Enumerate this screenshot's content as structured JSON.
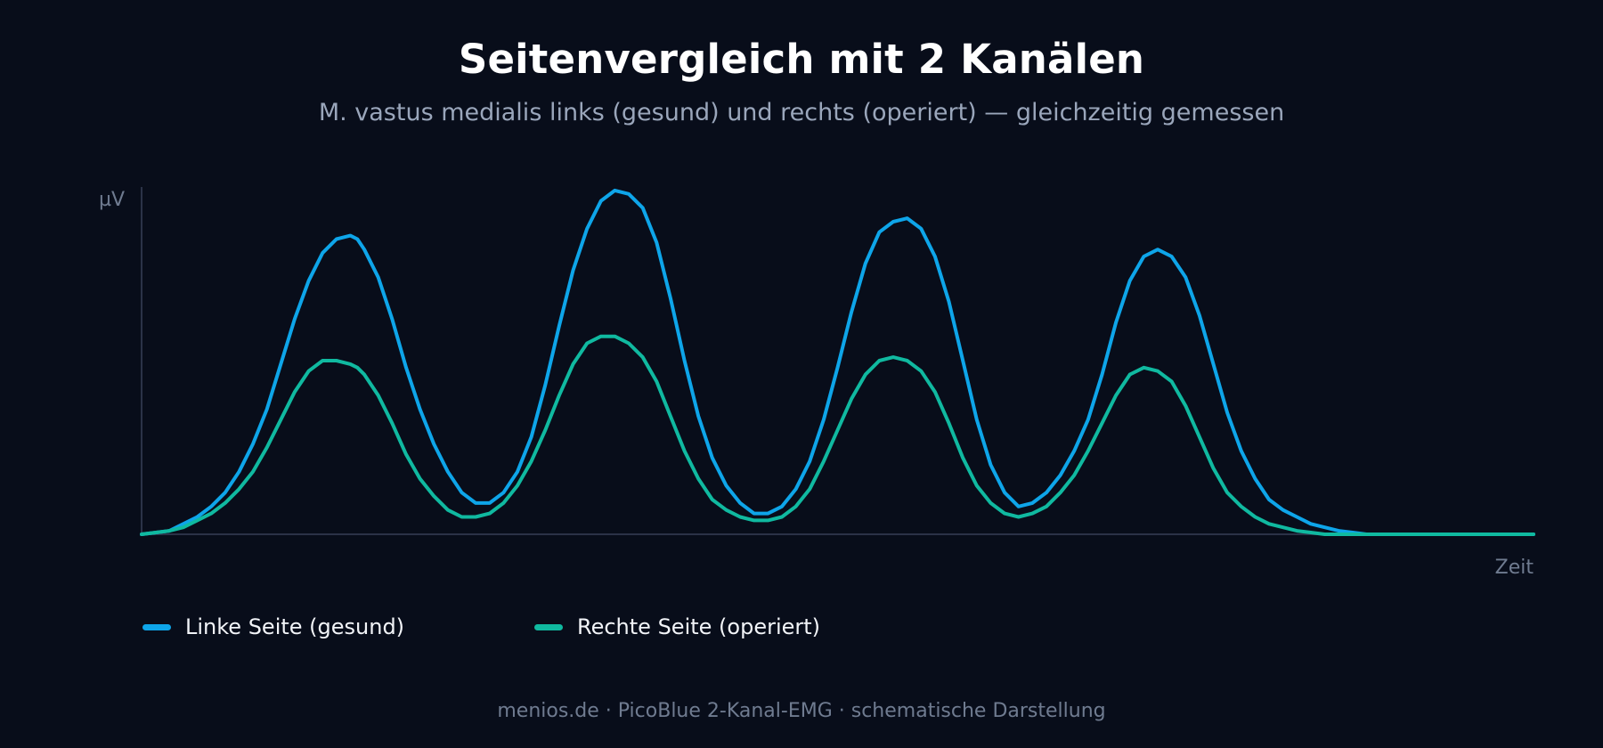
{
  "header": {
    "title": "Seitenvergleich mit 2 Kanälen",
    "subtitle": "M. vastus medialis links (gesund) und rechts (operiert) — gleichzeitig gemessen"
  },
  "footer": {
    "text": "menios.de · PicoBlue 2-Kanal-EMG · schematische Darstellung"
  },
  "colors": {
    "background": "#080d1a",
    "axis": "#2b3247",
    "left": "#0ea5e9",
    "right": "#10b9a0"
  },
  "chart_data": {
    "type": "line",
    "title": "Seitenvergleich mit 2 Kanälen",
    "subtitle": "M. vastus medialis links (gesund) und rechts (operiert) — gleichzeitig gemessen",
    "xlabel": "Zeit",
    "ylabel": "µV",
    "xlim": [
      0,
      100
    ],
    "ylim": [
      0,
      100
    ],
    "grid": false,
    "legend_position": "bottom-left",
    "series": [
      {
        "name": "Linke Seite (gesund)",
        "color": "#0ea5e9",
        "x": [
          0,
          2,
          3,
          4,
          5,
          6,
          7,
          8,
          9,
          10,
          11,
          12,
          13,
          14,
          15,
          15.5,
          16,
          17,
          18,
          19,
          20,
          21,
          22,
          23,
          24,
          25,
          26,
          27,
          28,
          29,
          30,
          31,
          32,
          33,
          34,
          35,
          36,
          37,
          38,
          39,
          40,
          41,
          42,
          43,
          44,
          45,
          46,
          47,
          48,
          49,
          50,
          51,
          52,
          53,
          54,
          55,
          56,
          57,
          58,
          59,
          60,
          61,
          62,
          63,
          64,
          65,
          66,
          67,
          68,
          69,
          70,
          71,
          72,
          73,
          74,
          75,
          76,
          77,
          78,
          79,
          80,
          81,
          82,
          83,
          84,
          85,
          86,
          87,
          88,
          89,
          90,
          91,
          92,
          93,
          94,
          95,
          96,
          97,
          98,
          99,
          100
        ],
        "values": [
          0,
          1,
          3,
          5,
          8,
          12,
          18,
          26,
          36,
          49,
          62,
          73,
          81,
          85,
          86,
          85,
          82,
          74,
          62,
          48,
          36,
          26,
          18,
          12,
          9,
          9,
          12,
          18,
          28,
          43,
          60,
          76,
          88,
          96,
          99,
          98,
          94,
          84,
          68,
          50,
          34,
          22,
          14,
          9,
          6,
          6,
          8,
          13,
          21,
          33,
          48,
          64,
          78,
          87,
          90,
          91,
          88,
          80,
          67,
          50,
          33,
          20,
          12,
          8,
          9,
          12,
          17,
          24,
          33,
          46,
          61,
          73,
          80,
          82,
          80,
          74,
          63,
          49,
          35,
          24,
          16,
          10,
          7,
          5,
          3,
          2,
          1,
          0.5,
          0,
          0,
          0,
          0,
          0,
          0,
          0,
          0,
          0,
          0,
          0,
          0,
          0
        ]
      },
      {
        "name": "Rechte Seite (operiert)",
        "color": "#10b9a0",
        "x": [
          0,
          2,
          3,
          4,
          5,
          6,
          7,
          8,
          9,
          10,
          11,
          12,
          13,
          14,
          15,
          15.5,
          16,
          17,
          18,
          19,
          20,
          21,
          22,
          23,
          24,
          25,
          26,
          27,
          28,
          29,
          30,
          31,
          32,
          33,
          34,
          35,
          36,
          37,
          38,
          39,
          40,
          41,
          42,
          43,
          44,
          45,
          46,
          47,
          48,
          49,
          50,
          51,
          52,
          53,
          54,
          55,
          56,
          57,
          58,
          59,
          60,
          61,
          62,
          63,
          64,
          65,
          66,
          67,
          68,
          69,
          70,
          71,
          72,
          73,
          74,
          75,
          76,
          77,
          78,
          79,
          80,
          81,
          82,
          83,
          84,
          85,
          86,
          87,
          88,
          89,
          90,
          91,
          92,
          93,
          94,
          95,
          96,
          97,
          98,
          99,
          100
        ],
        "values": [
          0,
          1,
          2,
          4,
          6,
          9,
          13,
          18,
          25,
          33,
          41,
          47,
          50,
          50,
          49,
          48,
          46,
          40,
          32,
          23,
          16,
          11,
          7,
          5,
          5,
          6,
          9,
          14,
          21,
          30,
          40,
          49,
          55,
          57,
          57,
          55,
          51,
          44,
          34,
          24,
          16,
          10,
          7,
          5,
          4,
          4,
          5,
          8,
          13,
          21,
          30,
          39,
          46,
          50,
          51,
          50,
          47,
          41,
          32,
          22,
          14,
          9,
          6,
          5,
          6,
          8,
          12,
          17,
          24,
          32,
          40,
          46,
          48,
          47,
          44,
          37,
          28,
          19,
          12,
          8,
          5,
          3,
          2,
          1,
          0.5,
          0,
          0,
          0,
          0,
          0,
          0,
          0,
          0,
          0,
          0,
          0,
          0,
          0,
          0,
          0,
          0
        ]
      }
    ]
  }
}
